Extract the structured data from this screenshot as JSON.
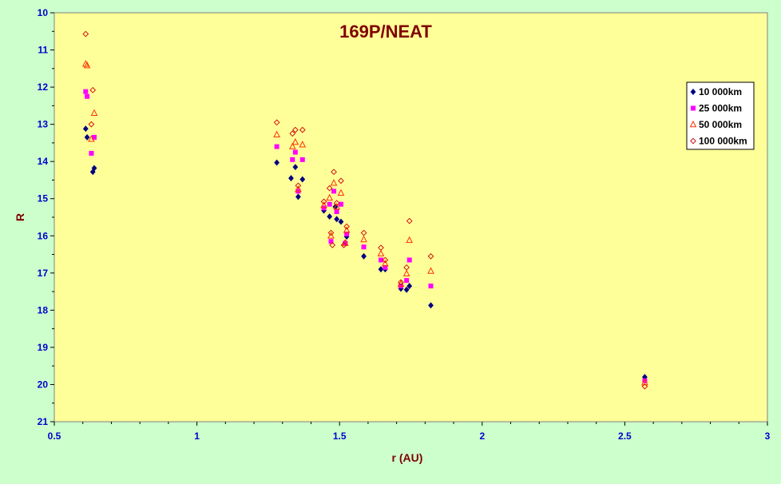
{
  "chart_data": {
    "type": "scatter",
    "title": "169P/NEAT",
    "xlabel": "r (AU)",
    "ylabel": "R",
    "xlim": [
      0.5,
      3
    ],
    "ylim": [
      10,
      21
    ],
    "y_reversed": true,
    "grid": false,
    "legend_position": "top-right",
    "xticks": [
      "0.5",
      "1",
      "1.5",
      "2",
      "2.5",
      "3"
    ],
    "yticks": [
      "10",
      "11",
      "12",
      "13",
      "14",
      "15",
      "16",
      "17",
      "18",
      "19",
      "20",
      "21"
    ],
    "colors": {
      "plot_background": "#ffff99",
      "outer_background": "#ccffcc",
      "title": "#800000",
      "axis_labels": "#800000",
      "tick_labels": "#0000cc"
    },
    "series": [
      {
        "name": "10 000km",
        "marker": "diamond-filled",
        "color": "#000080",
        "points": [
          [
            0.61,
            13.12
          ],
          [
            0.615,
            13.35
          ],
          [
            0.635,
            14.28
          ],
          [
            0.64,
            14.18
          ],
          [
            1.28,
            14.03
          ],
          [
            1.33,
            14.45
          ],
          [
            1.345,
            14.15
          ],
          [
            1.355,
            14.95
          ],
          [
            1.37,
            14.48
          ],
          [
            1.445,
            15.32
          ],
          [
            1.465,
            15.48
          ],
          [
            1.485,
            15.22
          ],
          [
            1.49,
            15.55
          ],
          [
            1.505,
            15.62
          ],
          [
            1.52,
            16.18
          ],
          [
            1.525,
            16.02
          ],
          [
            1.585,
            16.55
          ],
          [
            1.645,
            16.9
          ],
          [
            1.66,
            16.9
          ],
          [
            1.715,
            17.42
          ],
          [
            1.735,
            17.45
          ],
          [
            1.745,
            17.35
          ],
          [
            1.82,
            17.87
          ],
          [
            2.57,
            19.8
          ]
        ]
      },
      {
        "name": "25 000km",
        "marker": "square-filled",
        "color": "#ff00ff",
        "points": [
          [
            0.61,
            12.12
          ],
          [
            0.615,
            12.25
          ],
          [
            0.63,
            13.78
          ],
          [
            0.64,
            13.35
          ],
          [
            1.28,
            13.6
          ],
          [
            1.335,
            13.95
          ],
          [
            1.345,
            13.75
          ],
          [
            1.355,
            14.8
          ],
          [
            1.37,
            13.95
          ],
          [
            1.445,
            15.25
          ],
          [
            1.465,
            15.15
          ],
          [
            1.47,
            16.15
          ],
          [
            1.48,
            14.8
          ],
          [
            1.49,
            15.35
          ],
          [
            1.505,
            15.15
          ],
          [
            1.52,
            16.2
          ],
          [
            1.525,
            15.95
          ],
          [
            1.585,
            16.3
          ],
          [
            1.645,
            16.65
          ],
          [
            1.66,
            16.85
          ],
          [
            1.715,
            17.35
          ],
          [
            1.735,
            17.2
          ],
          [
            1.745,
            16.65
          ],
          [
            1.82,
            17.35
          ],
          [
            2.57,
            19.9
          ]
        ]
      },
      {
        "name": "50 000km",
        "marker": "triangle-open",
        "color": "#ff3300",
        "points": [
          [
            0.61,
            11.38
          ],
          [
            0.615,
            11.42
          ],
          [
            0.63,
            13.4
          ],
          [
            0.64,
            12.7
          ],
          [
            1.28,
            13.28
          ],
          [
            1.335,
            13.6
          ],
          [
            1.345,
            13.48
          ],
          [
            1.355,
            14.75
          ],
          [
            1.37,
            13.55
          ],
          [
            1.445,
            15.18
          ],
          [
            1.465,
            14.98
          ],
          [
            1.47,
            16.0
          ],
          [
            1.48,
            14.58
          ],
          [
            1.49,
            15.22
          ],
          [
            1.505,
            14.85
          ],
          [
            1.52,
            16.2
          ],
          [
            1.525,
            15.85
          ],
          [
            1.585,
            16.1
          ],
          [
            1.645,
            16.48
          ],
          [
            1.66,
            16.75
          ],
          [
            1.715,
            17.3
          ],
          [
            1.735,
            17.02
          ],
          [
            1.745,
            16.12
          ],
          [
            1.82,
            16.95
          ],
          [
            2.57,
            19.95
          ]
        ]
      },
      {
        "name": "100 000km",
        "marker": "circle-open",
        "color": "#cc0000",
        "points": [
          [
            0.61,
            10.57
          ],
          [
            0.63,
            13.0
          ],
          [
            0.635,
            12.08
          ],
          [
            1.28,
            12.95
          ],
          [
            1.335,
            13.25
          ],
          [
            1.345,
            13.15
          ],
          [
            1.355,
            14.65
          ],
          [
            1.37,
            13.15
          ],
          [
            1.445,
            15.08
          ],
          [
            1.465,
            14.72
          ],
          [
            1.47,
            15.92
          ],
          [
            1.475,
            16.25
          ],
          [
            1.48,
            14.28
          ],
          [
            1.49,
            15.12
          ],
          [
            1.505,
            14.52
          ],
          [
            1.515,
            16.25
          ],
          [
            1.525,
            15.75
          ],
          [
            1.585,
            15.92
          ],
          [
            1.645,
            16.32
          ],
          [
            1.66,
            16.65
          ],
          [
            1.715,
            17.25
          ],
          [
            1.735,
            16.85
          ],
          [
            1.745,
            15.6
          ],
          [
            1.82,
            16.55
          ],
          [
            2.57,
            20.05
          ]
        ]
      }
    ]
  }
}
